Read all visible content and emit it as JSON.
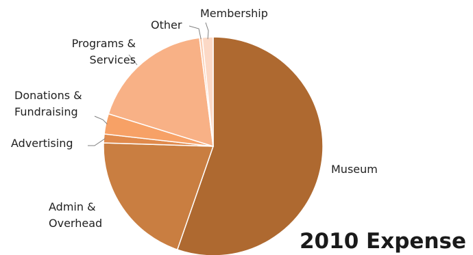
{
  "chart_data": {
    "type": "pie",
    "title": "2010 Expense",
    "start_angle_deg": 0,
    "direction": "clockwise",
    "slices": [
      {
        "key": "museum",
        "label": "Museum",
        "value": 55.3,
        "color": "#AE6930"
      },
      {
        "key": "admin",
        "label": "Admin & Overhead",
        "label_lines": [
          "Admin &",
          "Overhead"
        ],
        "value": 20.2,
        "color": "#C97E41"
      },
      {
        "key": "advertising",
        "label": "Advertising",
        "label_lines": [
          "Advertising"
        ],
        "value": 1.3,
        "color": "#E08A4C"
      },
      {
        "key": "donations",
        "label": "Donations & Fundraising",
        "label_lines": [
          "Donations &",
          "Fundraising"
        ],
        "value": 3.0,
        "color": "#F7A166"
      },
      {
        "key": "programs",
        "label": "Programs & Services",
        "label_lines": [
          "Programs &",
          "Services"
        ],
        "value": 18.2,
        "color": "#F8B186"
      },
      {
        "key": "other",
        "label": "Other",
        "label_lines": [
          "Other"
        ],
        "value": 0.4,
        "color": "#FACCB0"
      },
      {
        "key": "membership",
        "label": "Membership",
        "label_lines": [
          "Membership"
        ],
        "value": 1.6,
        "color": "#FCD9C6"
      }
    ]
  }
}
